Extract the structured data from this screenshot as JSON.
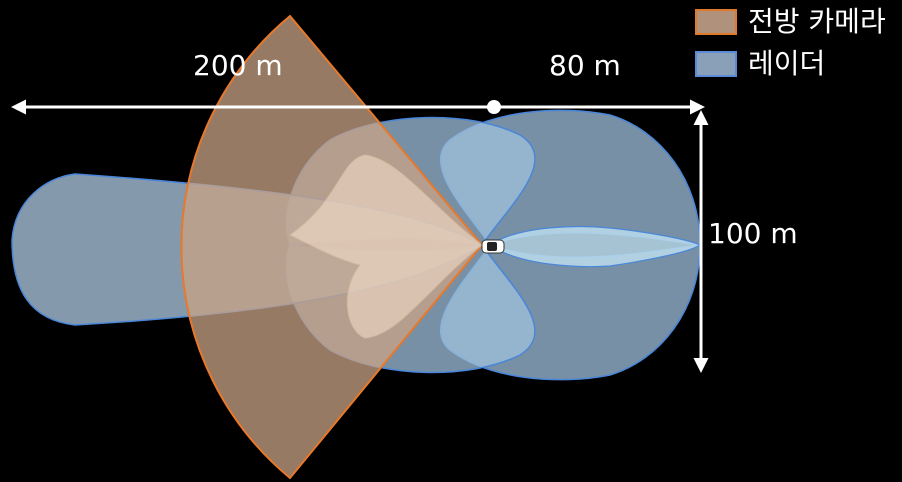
{
  "labels": {
    "forward_range": "200 m",
    "rear_range": "80 m",
    "lateral_range": "100 m"
  },
  "legend": [
    {
      "label": "전방 카메라",
      "fill": "#b0917b",
      "stroke": "#e07a2a"
    },
    {
      "label": "레이더",
      "fill": "#8aa0b8",
      "stroke": "#5b8bd6"
    }
  ],
  "colors": {
    "background": "#000000",
    "camera_fill": "#c9a386",
    "camera_stroke": "#e8782a",
    "radar_fill": "#9fc0dc",
    "radar_stroke": "#4a86d8",
    "arrow": "#ffffff"
  }
}
